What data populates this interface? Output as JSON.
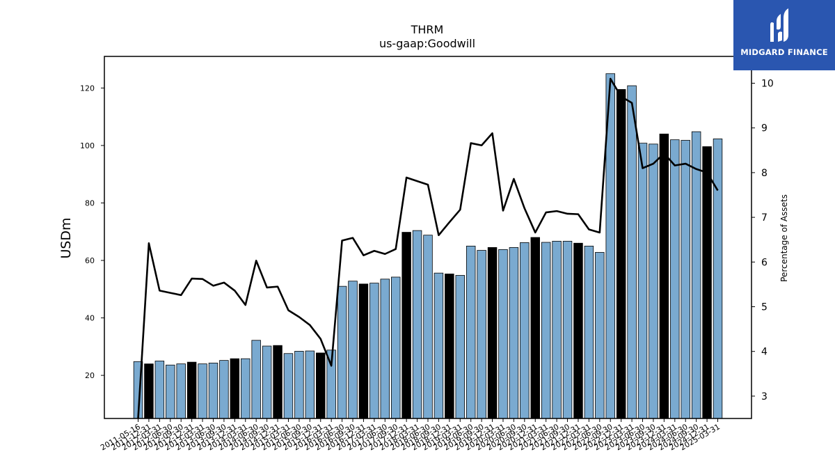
{
  "brand": {
    "name": "MIDGARD FINANCE",
    "bg_color": "#2a56b0"
  },
  "chart_data": {
    "type": "bar",
    "title": "THRM",
    "subtitle": "us-gaap:Goodwill",
    "ylabel": "USDm",
    "y2label": "Percentage of Assets",
    "ylim": [
      5,
      131
    ],
    "y2lim": [
      2.5,
      10.6
    ],
    "yticks": [
      20,
      40,
      60,
      80,
      100,
      120
    ],
    "y2ticks": [
      3,
      4,
      5,
      6,
      7,
      8,
      9,
      10
    ],
    "colors": {
      "bar": "#7aaad0",
      "bar_highlight": "#000000",
      "line": "#000000"
    },
    "categories": [
      "2011-05-16",
      "2011-12-31",
      "2012-03-31",
      "2012-06-30",
      "2012-09-30",
      "2012-12-31",
      "2013-03-31",
      "2013-06-30",
      "2013-09-30",
      "2013-12-31",
      "2014-03-31",
      "2014-06-30",
      "2014-09-30",
      "2014-12-31",
      "2015-03-31",
      "2015-06-30",
      "2015-09-30",
      "2015-12-31",
      "2016-03-31",
      "2016-06-30",
      "2016-09-30",
      "2016-12-31",
      "2017-03-31",
      "2017-06-30",
      "2017-09-30",
      "2017-12-31",
      "2018-03-31",
      "2018-06-30",
      "2018-09-30",
      "2018-12-31",
      "2019-03-31",
      "2019-06-30",
      "2019-09-30",
      "2019-12-31",
      "2020-03-31",
      "2020-06-30",
      "2020-09-30",
      "2020-12-31",
      "2021-03-31",
      "2021-06-30",
      "2021-09-30",
      "2021-12-31",
      "2022-03-31",
      "2022-06-30",
      "2022-09-30",
      "2022-12-31",
      "2023-03-31",
      "2023-06-30",
      "2023-09-30",
      "2023-12-31",
      "2024-03-31",
      "2024-06-30",
      "2024-09-30",
      "2024-12-31",
      "2025-03-31"
    ],
    "xtick_labels": [
      "2011-05-16",
      "2011-12-31",
      "2012-03-31",
      "2012-06-30",
      "2012-09-30",
      "2012-12-31",
      "2013-03-31",
      "2013-06-30",
      "2013-09-30",
      "2013-12-31",
      "2014-03-31",
      "2014-06-30",
      "2014-09-30",
      "2014-12-31",
      "2015-03-31",
      "2015-06-30",
      "2015-09-30",
      "2015-12-31",
      "2016-03-31",
      "2016-06-30",
      "2016-09-30",
      "2016-12-31",
      "2017-03-31",
      "2017-06-30",
      "2017-09-30",
      "2017-12-31",
      "2018-03-31",
      "2018-06-30",
      "2018-09-30",
      "2018-12-31",
      "2019-03-31",
      "2019-06-30",
      "2019-09-30",
      "2019-12-31",
      "2020-03-31",
      "2020-06-30",
      "2020-09-30",
      "2020-12-31",
      "2021-03-31",
      "2021-06-30",
      "2021-09-30",
      "2021-12-31",
      "2022-03-31",
      "2022-06-30",
      "2022-09-30",
      "2022-12-31",
      "2023-03-31",
      "2023-06-30",
      "2023-09-30",
      "2023-12-31",
      "2024-03-31",
      "2024-06-30",
      "2024-09-30",
      "2024-12-31",
      "2025-03-31"
    ],
    "series": [
      {
        "kind": "bar",
        "values": [
          24.8,
          24.0,
          25.0,
          23.6,
          24.0,
          24.6,
          24.0,
          24.3,
          25.2,
          25.8,
          25.8,
          32.2,
          30.2,
          30.4,
          27.6,
          28.4,
          28.5,
          27.8,
          28.8,
          51.0,
          52.8,
          51.8,
          52.1,
          53.5,
          54.2,
          69.8,
          70.4,
          68.8,
          55.6,
          55.3,
          54.8,
          65.0,
          63.5,
          64.5,
          63.8,
          64.5,
          66.2,
          68.0,
          66.3,
          66.7,
          66.7,
          66.0,
          65.0,
          62.8,
          125.0,
          119.5,
          120.8,
          100.8,
          100.5,
          104.0,
          102.0,
          101.8,
          104.8,
          99.6,
          102.3
        ],
        "highlight": [
          false,
          true,
          false,
          false,
          false,
          true,
          false,
          false,
          false,
          true,
          false,
          false,
          false,
          true,
          false,
          false,
          false,
          true,
          false,
          false,
          false,
          true,
          false,
          false,
          false,
          true,
          false,
          false,
          false,
          true,
          false,
          false,
          false,
          true,
          false,
          false,
          false,
          true,
          false,
          false,
          false,
          true,
          false,
          false,
          false,
          true,
          false,
          false,
          false,
          true,
          false,
          false,
          false,
          true,
          false
        ]
      },
      {
        "kind": "line",
        "axis": "right",
        "values": [
          2.5,
          6.42,
          5.36,
          5.31,
          5.26,
          5.63,
          5.62,
          5.47,
          5.54,
          5.36,
          5.04,
          6.03,
          5.43,
          5.45,
          4.92,
          4.77,
          4.59,
          4.28,
          3.68,
          6.48,
          6.54,
          6.15,
          6.25,
          6.18,
          6.29,
          7.89,
          7.81,
          7.73,
          6.6,
          6.89,
          7.17,
          8.66,
          8.61,
          8.88,
          7.15,
          7.86,
          7.2,
          6.66,
          7.11,
          7.14,
          7.08,
          7.07,
          6.73,
          6.66,
          10.1,
          9.7,
          9.56,
          8.1,
          8.2,
          8.43,
          8.16,
          8.2,
          8.08,
          8.0,
          7.6
        ]
      }
    ]
  }
}
